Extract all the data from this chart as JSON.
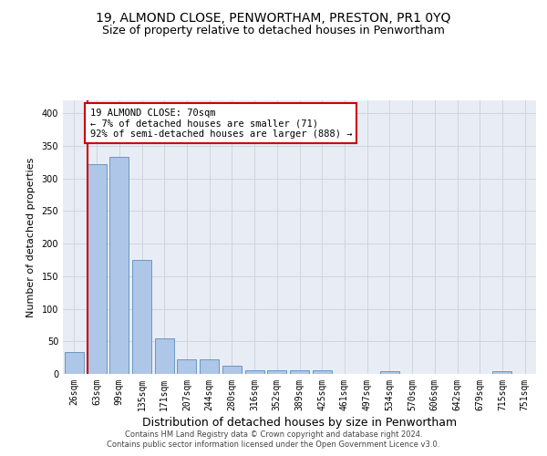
{
  "title1": "19, ALMOND CLOSE, PENWORTHAM, PRESTON, PR1 0YQ",
  "title2": "Size of property relative to detached houses in Penwortham",
  "xlabel": "Distribution of detached houses by size in Penwortham",
  "ylabel": "Number of detached properties",
  "categories": [
    "26sqm",
    "63sqm",
    "99sqm",
    "135sqm",
    "171sqm",
    "207sqm",
    "244sqm",
    "280sqm",
    "316sqm",
    "352sqm",
    "389sqm",
    "425sqm",
    "461sqm",
    "497sqm",
    "534sqm",
    "570sqm",
    "606sqm",
    "642sqm",
    "679sqm",
    "715sqm",
    "751sqm"
  ],
  "bar_values": [
    33,
    322,
    333,
    175,
    55,
    23,
    22,
    13,
    6,
    5,
    5,
    5,
    0,
    0,
    4,
    0,
    0,
    0,
    0,
    4,
    0
  ],
  "bar_color": "#aec6e8",
  "bar_edge_color": "#5b8db8",
  "vline_color": "#cc0000",
  "vline_x": 0.575,
  "annotation_text": "19 ALMOND CLOSE: 70sqm\n← 7% of detached houses are smaller (71)\n92% of semi-detached houses are larger (888) →",
  "annotation_box_color": "#ffffff",
  "annotation_box_edge": "#cc0000",
  "ylim": [
    0,
    420
  ],
  "yticks": [
    0,
    50,
    100,
    150,
    200,
    250,
    300,
    350,
    400
  ],
  "grid_color": "#cdd5e0",
  "bg_color": "#e8edf5",
  "footer1": "Contains HM Land Registry data © Crown copyright and database right 2024.",
  "footer2": "Contains public sector information licensed under the Open Government Licence v3.0.",
  "title1_fontsize": 10,
  "title2_fontsize": 9,
  "tick_fontsize": 7,
  "xlabel_fontsize": 9,
  "ylabel_fontsize": 8,
  "annot_fontsize": 7.5,
  "footer_fontsize": 6
}
